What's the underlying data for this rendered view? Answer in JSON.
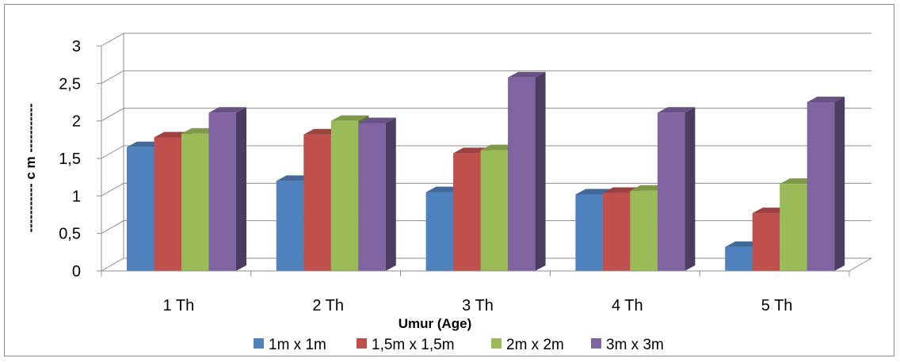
{
  "chart_data": {
    "type": "bar",
    "three_d": true,
    "title": "",
    "xlabel": "Umur (Age)",
    "ylabel": "----------- c m -----------",
    "categories": [
      "1 Th",
      "2 Th",
      "3 Th",
      "4 Th",
      "5 Th"
    ],
    "ylim": [
      0,
      3
    ],
    "yticks": [
      "0",
      "0,5",
      "1",
      "1,5",
      "2",
      "2,5",
      "3"
    ],
    "grid": true,
    "legend_position": "bottom",
    "series": [
      {
        "name": "1m x 1m",
        "color": "#4f81bd",
        "values": [
          1.65,
          1.2,
          1.05,
          1.02,
          0.32
        ]
      },
      {
        "name": "1,5m x 1,5m",
        "color": "#c0504d",
        "values": [
          1.78,
          1.82,
          1.57,
          1.04,
          0.77
        ]
      },
      {
        "name": "2m x 2m",
        "color": "#9bbb59",
        "values": [
          1.83,
          2.0,
          1.61,
          1.07,
          1.16
        ]
      },
      {
        "name": "3m x 3m",
        "color": "#8064a2",
        "values": [
          2.11,
          1.97,
          2.58,
          2.11,
          2.25
        ]
      }
    ]
  }
}
